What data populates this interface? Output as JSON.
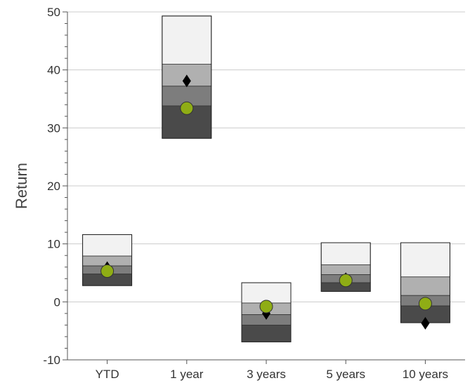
{
  "chart_data": {
    "type": "box",
    "title": "",
    "xlabel": "",
    "ylabel": "Return",
    "ylim": [
      -10,
      50
    ],
    "yticks": [
      -10,
      0,
      10,
      20,
      30,
      40,
      50
    ],
    "grid": true,
    "categories": [
      "YTD",
      "1 year",
      "3 years",
      "5 years",
      "10 years"
    ],
    "bands": [
      {
        "category": "YTD",
        "min": 2.8,
        "q1": 4.8,
        "median": 6.2,
        "q3": 7.9,
        "max": 11.6
      },
      {
        "category": "1 year",
        "min": 28.2,
        "q1": 33.8,
        "median": 37.2,
        "q3": 41.0,
        "max": 49.3
      },
      {
        "category": "3 years",
        "min": -6.9,
        "q1": -4.0,
        "median": -2.2,
        "q3": -0.2,
        "max": 3.3
      },
      {
        "category": "5 years",
        "min": 1.8,
        "q1": 3.3,
        "median": 4.7,
        "q3": 6.4,
        "max": 10.2
      },
      {
        "category": "10 years",
        "min": -3.6,
        "q1": -0.7,
        "median": 1.1,
        "q3": 4.3,
        "max": 10.2
      }
    ],
    "series": [
      {
        "marker": "diamond",
        "color": "#000000",
        "values": [
          5.9,
          38.1,
          -2.0,
          4.0,
          -3.7
        ]
      },
      {
        "marker": "circle",
        "color": "#8fad15",
        "values": [
          5.3,
          33.4,
          -0.8,
          3.7,
          -0.3
        ]
      }
    ],
    "band_colors": [
      "#f2f2f2",
      "#b0b0b0",
      "#7d7d7d",
      "#4a4a4a"
    ]
  }
}
